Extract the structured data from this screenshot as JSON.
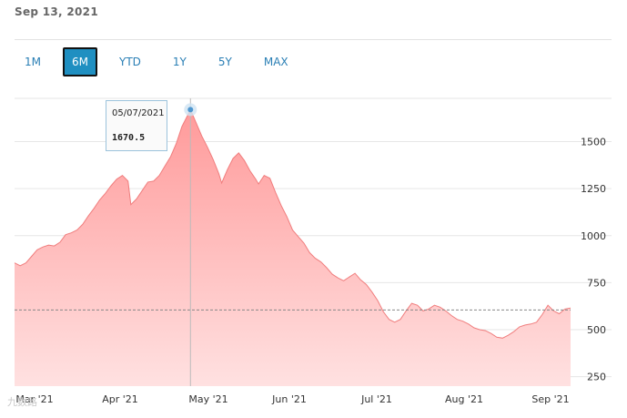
{
  "header": {
    "date": "Sep 13, 2021"
  },
  "range_buttons": [
    {
      "label": "1M",
      "active": false
    },
    {
      "label": "6M",
      "active": true
    },
    {
      "label": "YTD",
      "active": false
    },
    {
      "label": "1Y",
      "active": false
    },
    {
      "label": "5Y",
      "active": false
    },
    {
      "label": "MAX",
      "active": false
    }
  ],
  "tooltip": {
    "date": "05/07/2021",
    "value": "1670.5"
  },
  "watermark": "九数路",
  "colors": {
    "accent": "#1f8fc1",
    "area_top": "#ff9a9a",
    "area_bottom": "#ffe1e1",
    "line": "#f07d7d"
  },
  "chart_data": {
    "type": "area",
    "x_labels": [
      "Mar '21",
      "Apr '21",
      "May '21",
      "Jun '21",
      "Jul '21",
      "Aug '21",
      "Sep '21"
    ],
    "y_ticks": [
      250,
      500,
      750,
      1000,
      1250,
      1500
    ],
    "ylim": [
      200,
      1730
    ],
    "reference_line": 605,
    "highlight": {
      "date": "2021-05-07",
      "value": 1670.5
    },
    "series": [
      {
        "values": [
          [
            0,
            855
          ],
          [
            2,
            840
          ],
          [
            4,
            855
          ],
          [
            6,
            890
          ],
          [
            8,
            925
          ],
          [
            10,
            940
          ],
          [
            12,
            950
          ],
          [
            14,
            945
          ],
          [
            16,
            965
          ],
          [
            18,
            1005
          ],
          [
            20,
            1015
          ],
          [
            22,
            1030
          ],
          [
            24,
            1060
          ],
          [
            26,
            1105
          ],
          [
            28,
            1145
          ],
          [
            30,
            1190
          ],
          [
            32,
            1225
          ],
          [
            34,
            1265
          ],
          [
            36,
            1300
          ],
          [
            38,
            1320
          ],
          [
            40,
            1290
          ],
          [
            41,
            1165
          ],
          [
            43,
            1195
          ],
          [
            45,
            1240
          ],
          [
            47,
            1285
          ],
          [
            49,
            1290
          ],
          [
            51,
            1320
          ],
          [
            53,
            1370
          ],
          [
            55,
            1420
          ],
          [
            57,
            1490
          ],
          [
            59,
            1580
          ],
          [
            61,
            1640
          ],
          [
            62,
            1670
          ],
          [
            64,
            1600
          ],
          [
            66,
            1530
          ],
          [
            68,
            1470
          ],
          [
            70,
            1405
          ],
          [
            72,
            1330
          ],
          [
            73,
            1280
          ],
          [
            75,
            1350
          ],
          [
            77,
            1410
          ],
          [
            79,
            1440
          ],
          [
            81,
            1400
          ],
          [
            83,
            1345
          ],
          [
            85,
            1300
          ],
          [
            86,
            1275
          ],
          [
            88,
            1320
          ],
          [
            90,
            1305
          ],
          [
            92,
            1230
          ],
          [
            94,
            1160
          ],
          [
            96,
            1100
          ],
          [
            98,
            1030
          ],
          [
            100,
            995
          ],
          [
            102,
            960
          ],
          [
            104,
            910
          ],
          [
            106,
            880
          ],
          [
            108,
            860
          ],
          [
            110,
            830
          ],
          [
            112,
            795
          ],
          [
            114,
            775
          ],
          [
            116,
            760
          ],
          [
            118,
            780
          ],
          [
            120,
            800
          ],
          [
            122,
            765
          ],
          [
            124,
            740
          ],
          [
            126,
            700
          ],
          [
            128,
            655
          ],
          [
            130,
            595
          ],
          [
            132,
            555
          ],
          [
            134,
            540
          ],
          [
            136,
            555
          ],
          [
            138,
            600
          ],
          [
            140,
            640
          ],
          [
            142,
            630
          ],
          [
            144,
            600
          ],
          [
            146,
            610
          ],
          [
            148,
            630
          ],
          [
            150,
            620
          ],
          [
            152,
            600
          ],
          [
            154,
            575
          ],
          [
            156,
            555
          ],
          [
            158,
            545
          ],
          [
            160,
            530
          ],
          [
            162,
            510
          ],
          [
            164,
            500
          ],
          [
            166,
            495
          ],
          [
            168,
            480
          ],
          [
            170,
            460
          ],
          [
            172,
            455
          ],
          [
            174,
            470
          ],
          [
            176,
            490
          ],
          [
            178,
            515
          ],
          [
            180,
            525
          ],
          [
            182,
            530
          ],
          [
            184,
            540
          ],
          [
            186,
            580
          ],
          [
            188,
            630
          ],
          [
            190,
            600
          ],
          [
            192,
            585
          ],
          [
            194,
            610
          ],
          [
            196,
            615
          ]
        ]
      }
    ]
  }
}
